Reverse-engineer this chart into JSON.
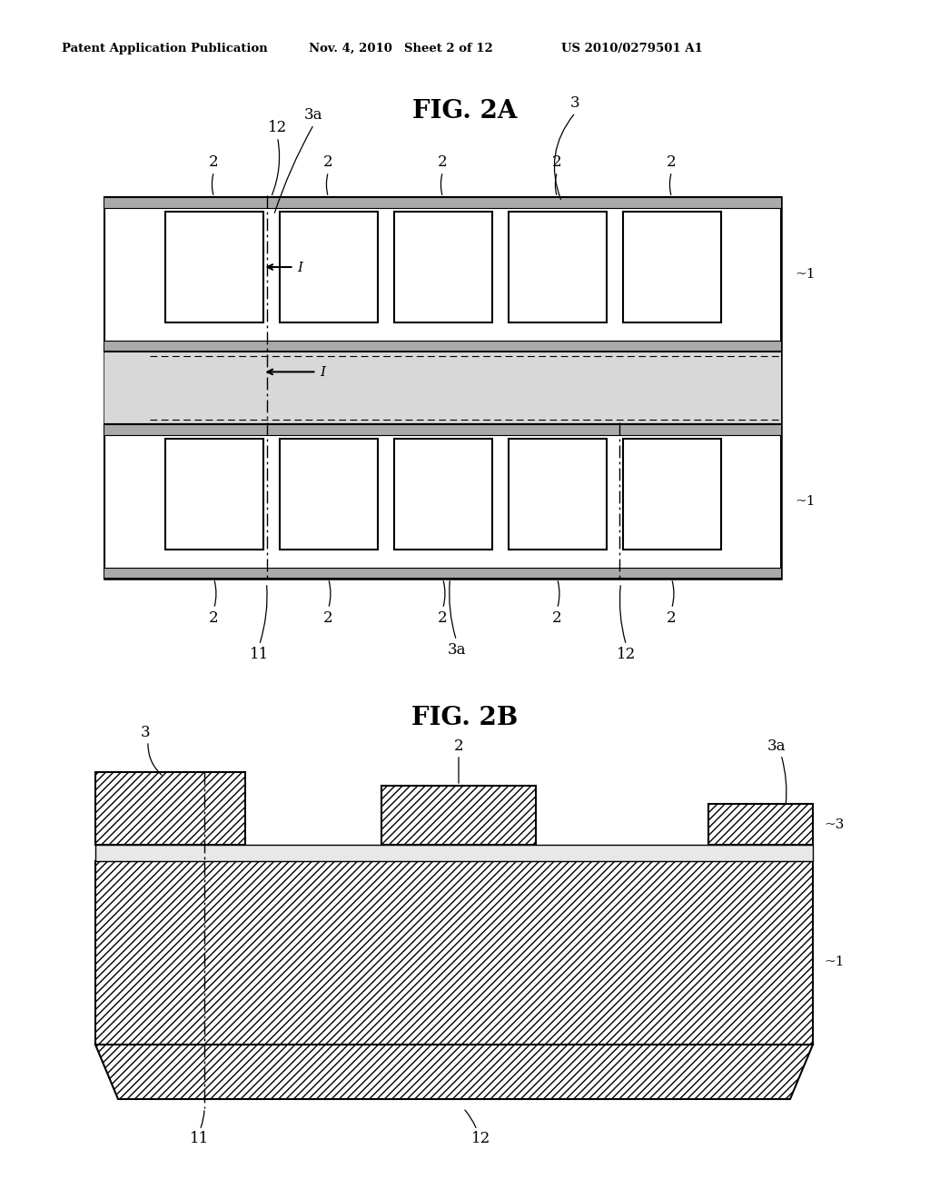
{
  "bg_color": "#ffffff",
  "header_text": "Patent Application Publication",
  "header_date": "Nov. 4, 2010",
  "header_sheet": "Sheet 2 of 12",
  "header_patent": "US 2010/0279501 A1",
  "fig2a_title": "FIG. 2A",
  "fig2b_title": "FIG. 2B",
  "gray_fill": "#c0c0c0",
  "light_gray": "#d8d8d8"
}
